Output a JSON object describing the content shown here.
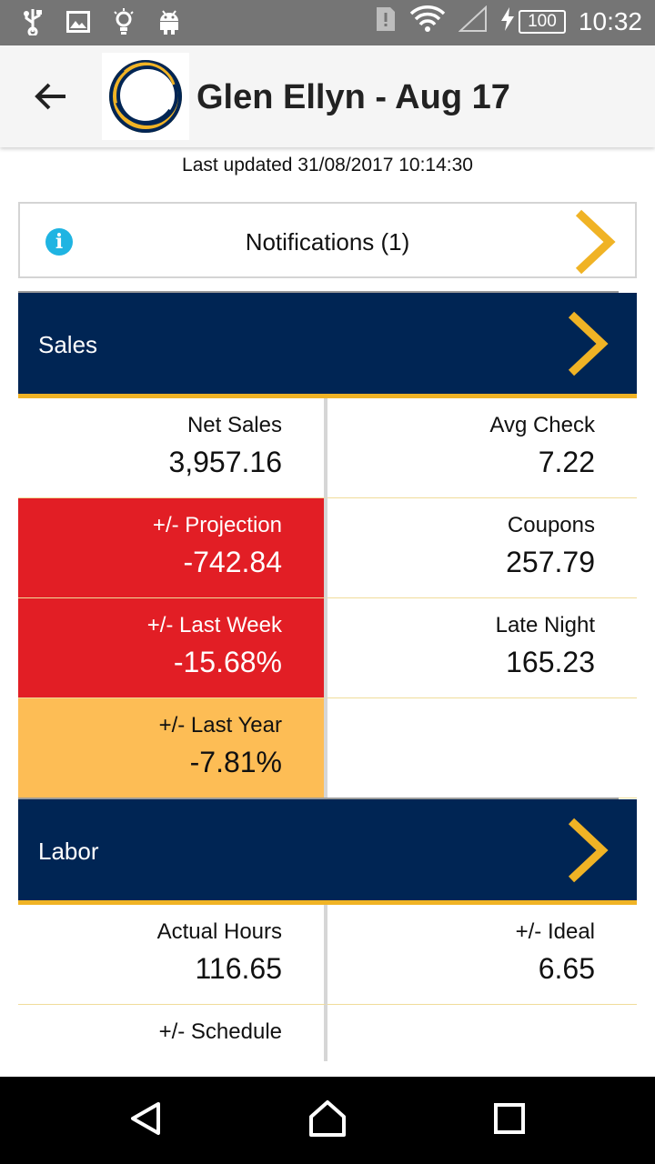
{
  "status_bar": {
    "battery": "100",
    "time": "10:32"
  },
  "header": {
    "title": "Glen Ellyn - Aug 17"
  },
  "last_updated": "Last updated 31/08/2017 10:14:30",
  "notifications": {
    "label": "Notifications (1)",
    "icon_glyph": "i"
  },
  "sales": {
    "title": "Sales",
    "rows": [
      {
        "left": {
          "label": "Net Sales",
          "value": "3,957.16"
        },
        "right": {
          "label": "Avg Check",
          "value": "7.22"
        }
      },
      {
        "left": {
          "label": "+/- Projection",
          "value": "-742.84"
        },
        "right": {
          "label": "Coupons",
          "value": "257.79"
        }
      },
      {
        "left": {
          "label": "+/- Last Week",
          "value": "-15.68%"
        },
        "right": {
          "label": "Late Night",
          "value": "165.23"
        }
      },
      {
        "left": {
          "label": "+/- Last Year",
          "value": "-7.81%"
        },
        "right": {
          "label": "",
          "value": ""
        }
      }
    ]
  },
  "labor": {
    "title": "Labor",
    "rows": [
      {
        "left": {
          "label": "Actual Hours",
          "value": "116.65"
        },
        "right": {
          "label": "+/- Ideal",
          "value": "6.65"
        }
      },
      {
        "left": {
          "label": "+/- Schedule",
          "value": ""
        },
        "right": {
          "label": "",
          "value": ""
        }
      }
    ]
  },
  "colors": {
    "navy": "#002554",
    "gold": "#f0b325",
    "negative": "#e21e25",
    "warning": "#fdbd55",
    "info": "#1fb4e2"
  },
  "icons": {
    "status_left": [
      "usb-icon",
      "image-icon",
      "lightbulb-icon",
      "android-icon"
    ],
    "status_right": [
      "sim-alert-icon",
      "wifi-icon",
      "signal-icon",
      "charging-icon"
    ],
    "back": "arrow-left-icon",
    "chevron": "chevron-right-icon",
    "nav": [
      "back-triangle-icon",
      "home-icon",
      "recents-icon"
    ]
  }
}
